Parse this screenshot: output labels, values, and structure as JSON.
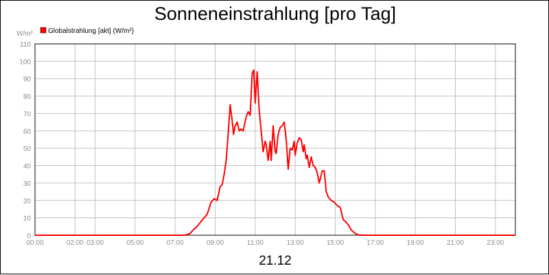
{
  "chart_data": {
    "type": "line",
    "title": "Sonneneinstrahlung [pro Tag]",
    "date_label": "21.12",
    "ylabel": "W/m²",
    "xlabel": "",
    "legend": {
      "placement": "top-left"
    },
    "grid": true,
    "xlim": [
      0,
      24
    ],
    "ylim": [
      0,
      110
    ],
    "y_ticks": [
      0,
      10,
      20,
      30,
      40,
      50,
      60,
      70,
      80,
      90,
      100,
      110
    ],
    "x_ticks": [
      {
        "value": 0,
        "label": "00:00"
      },
      {
        "value": 2,
        "label": "02:00"
      },
      {
        "value": 3,
        "label": "03:00"
      },
      {
        "value": 5,
        "label": "05:00"
      },
      {
        "value": 7,
        "label": "07:00"
      },
      {
        "value": 9,
        "label": "09:00"
      },
      {
        "value": 11,
        "label": "11:00"
      },
      {
        "value": 13,
        "label": "13:00"
      },
      {
        "value": 15,
        "label": "15:00"
      },
      {
        "value": 17,
        "label": "17:00"
      },
      {
        "value": 19,
        "label": "19:00"
      },
      {
        "value": 21,
        "label": "21:00"
      },
      {
        "value": 23,
        "label": "23:00"
      }
    ],
    "series": [
      {
        "name": "Globalstrahlung [akt] (W/m²)",
        "color": "#ff0000",
        "x": [
          0,
          7.5,
          7.75,
          7.9,
          8.1,
          8.3,
          8.45,
          8.6,
          8.8,
          8.95,
          9.1,
          9.25,
          9.35,
          9.45,
          9.55,
          9.65,
          9.75,
          9.85,
          9.92,
          10.0,
          10.1,
          10.2,
          10.3,
          10.4,
          10.55,
          10.65,
          10.75,
          10.85,
          10.93,
          11.0,
          11.1,
          11.2,
          11.3,
          11.4,
          11.5,
          11.55,
          11.65,
          11.75,
          11.8,
          11.9,
          12.0,
          12.05,
          12.15,
          12.25,
          12.35,
          12.45,
          12.55,
          12.65,
          12.75,
          12.85,
          12.95,
          13.0,
          13.1,
          13.2,
          13.3,
          13.4,
          13.45,
          13.55,
          13.6,
          13.7,
          13.8,
          13.9,
          14.0,
          14.1,
          14.2,
          14.35,
          14.45,
          14.55,
          14.65,
          14.8,
          14.95,
          15.1,
          15.25,
          15.4,
          15.5,
          15.65,
          15.8,
          16.0,
          16.2,
          16.4,
          24
        ],
        "y": [
          0,
          0,
          1,
          3,
          5,
          8,
          10,
          12,
          19,
          21,
          20,
          28,
          29,
          35,
          43,
          58,
          75,
          66,
          58,
          63,
          65,
          60,
          61,
          60,
          68,
          71,
          69,
          93,
          95,
          76,
          94,
          72,
          60,
          48,
          54,
          52,
          43,
          54,
          43,
          63,
          48,
          47,
          58,
          62,
          63,
          65,
          55,
          38,
          50,
          49,
          54,
          46,
          53,
          56,
          55,
          48,
          52,
          44,
          46,
          39,
          45,
          40,
          39,
          36,
          30,
          37,
          37,
          25,
          22,
          20,
          19,
          17,
          16,
          9,
          8,
          6,
          3,
          1,
          0,
          0,
          0
        ]
      }
    ]
  }
}
